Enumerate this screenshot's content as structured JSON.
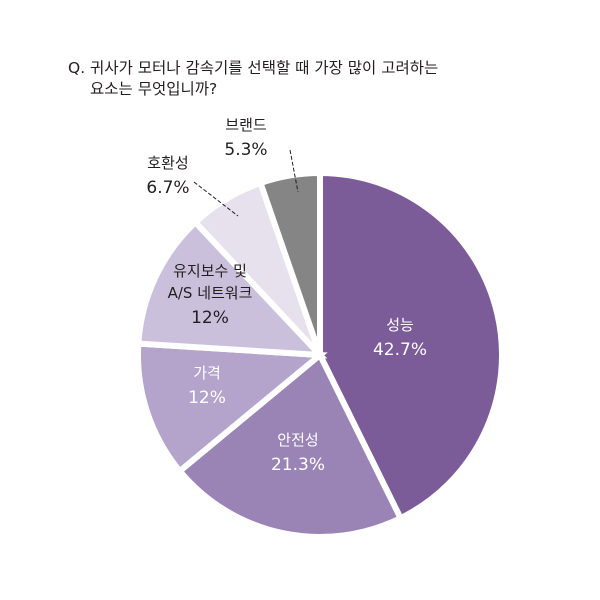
{
  "question": {
    "line1": "Q. 귀사가 모터나 감속기를 선택할 때 가장 많이 고려하는",
    "line2": "요소는 무엇입니까?"
  },
  "colors": {
    "gap": "#ffffff",
    "text_light": "#ffffff",
    "text_dark": "#231f20",
    "leader": "#231f20"
  },
  "chart_data": {
    "type": "pie",
    "title": "Q. 귀사가 모터나 감속기를 선택할 때 가장 많이 고려하는 요소는 무엇입니까?",
    "unit": "%",
    "start": "12 o'clock",
    "direction": "clockwise",
    "slices": [
      {
        "key": "performance",
        "label": "성능",
        "value": 42.7,
        "display": "42.7%",
        "color": "#7b5c99",
        "label_inside": true,
        "text": "light"
      },
      {
        "key": "safety",
        "label": "안전성",
        "value": 21.3,
        "display": "21.3%",
        "color": "#9a83b5",
        "label_inside": true,
        "text": "light"
      },
      {
        "key": "price",
        "label": "가격",
        "value": 12,
        "display": "12%",
        "color": "#b4a3cb",
        "label_inside": true,
        "text": "light"
      },
      {
        "key": "maintenance",
        "label_lines": [
          "유지보수 및",
          "A/S 네트워크"
        ],
        "value": 12,
        "display": "12%",
        "color": "#cbc0dc",
        "label_inside": true,
        "text": "dark"
      },
      {
        "key": "compatibility",
        "label": "호환성",
        "value": 6.7,
        "display": "6.7%",
        "color": "#e6e1ed",
        "label_inside": false,
        "text": "dark"
      },
      {
        "key": "brand",
        "label": "브랜드",
        "value": 5.3,
        "display": "5.3%",
        "color": "#858585",
        "label_inside": false,
        "text": "dark"
      }
    ]
  }
}
